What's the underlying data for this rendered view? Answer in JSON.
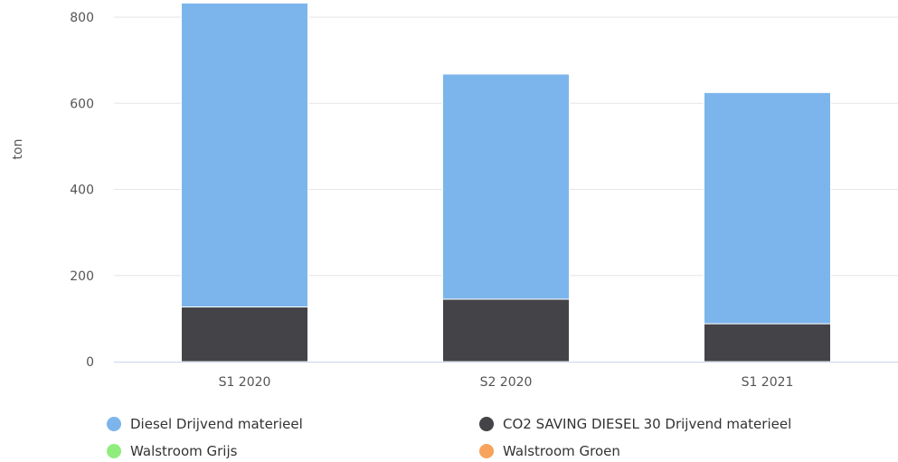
{
  "chart_data": {
    "type": "bar",
    "stacked": true,
    "categories": [
      "S1 2020",
      "S2 2020",
      "S1 2021"
    ],
    "series": [
      {
        "name": "Diesel Drijvend materieel",
        "values": [
          706,
          523,
          537
        ],
        "color": "#7cb5ec"
      },
      {
        "name": "CO2 SAVING DIESEL 30 Drijvend materieel",
        "values": [
          127,
          145,
          88
        ],
        "color": "#434348"
      },
      {
        "name": "Walstroom Grijs",
        "values": [
          0,
          0,
          0
        ],
        "color": "#90ed7d"
      },
      {
        "name": "Walstroom Groen",
        "values": [
          0,
          0,
          0
        ],
        "color": "#f7a35c"
      }
    ],
    "ylabel": "ton",
    "xlabel": "",
    "title": "",
    "ylim": [
      0,
      840
    ],
    "yticks": [
      0,
      200,
      400,
      600,
      800
    ],
    "grid": true,
    "legend_position": "bottom"
  }
}
